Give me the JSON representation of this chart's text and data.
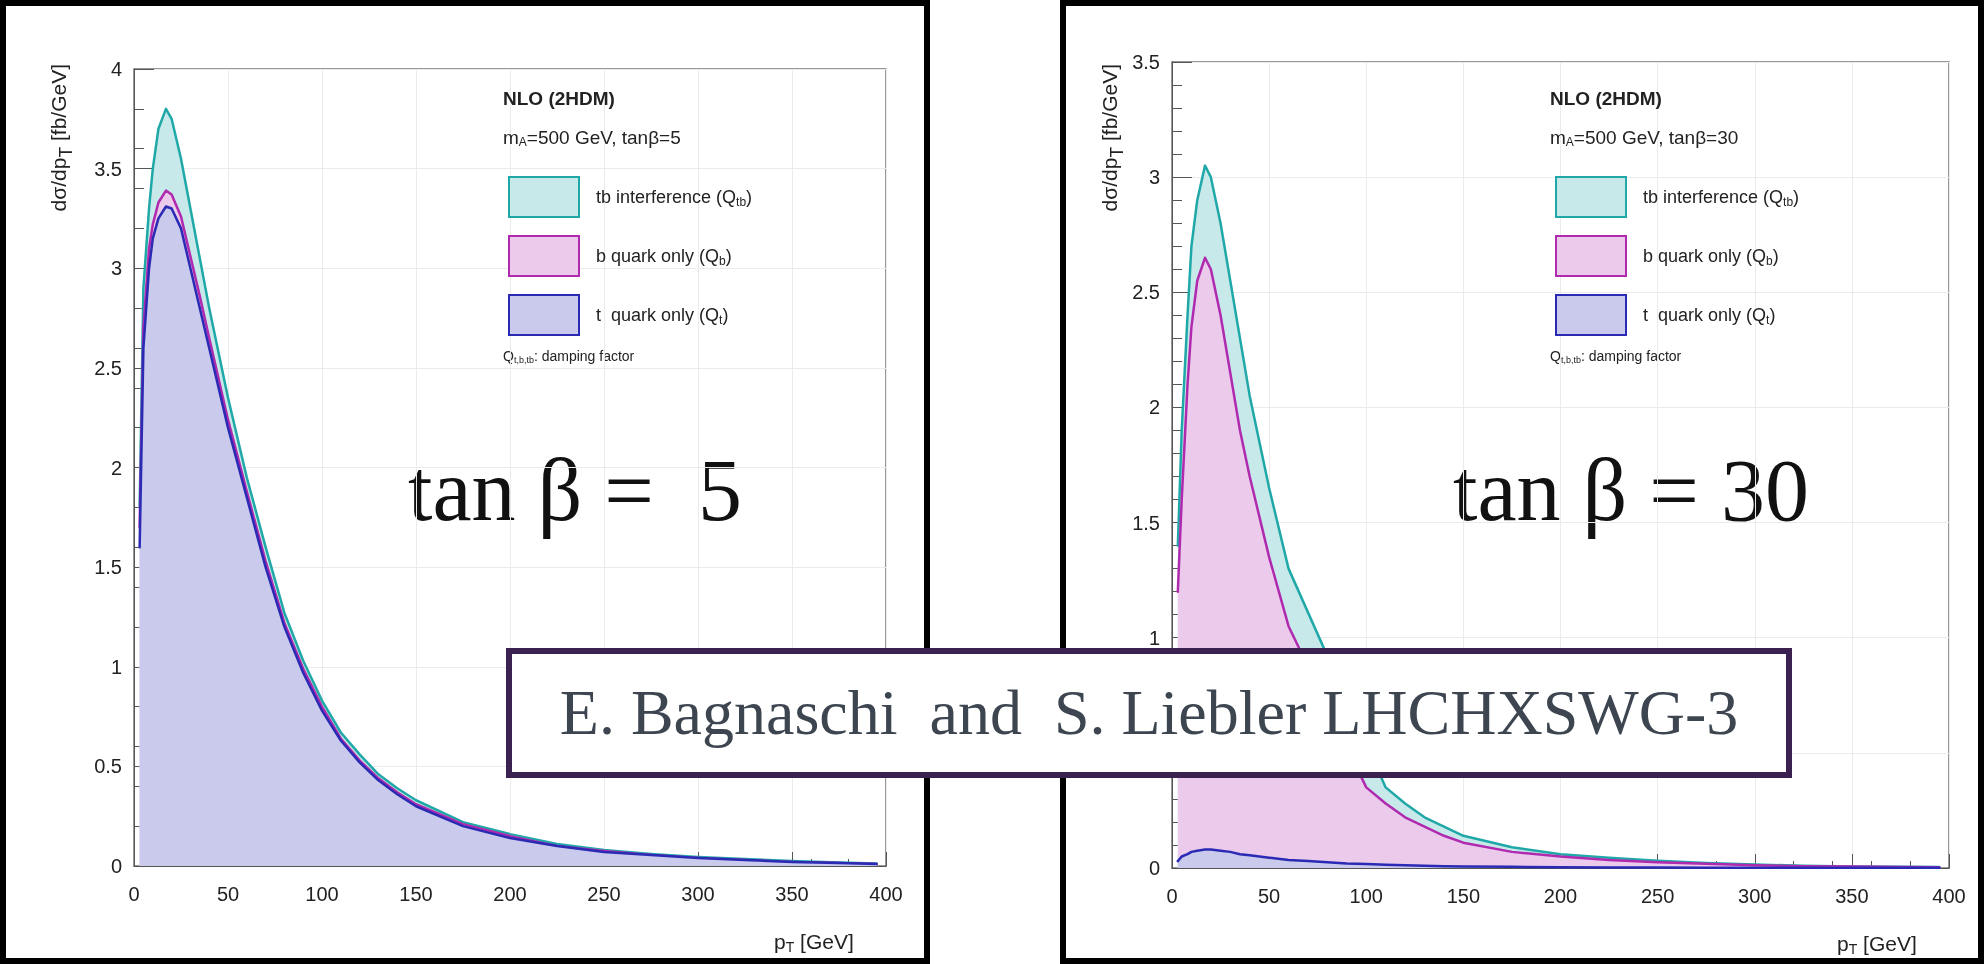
{
  "chart_data": [
    {
      "type": "area",
      "title": "NLO (2HDM)",
      "subtitle": "m$_{A}$=500 GeV, tanβ=5",
      "xlabel": "p$_{T}$ [GeV]",
      "ylabel": "dσ/dp$_{T}$ [fb/GeV]",
      "annotations": [
        "Q$_{t,b,tb}$: damping factor",
        "tan β =  5",
        "E. Bagnaschi  and  S. Liebler LHCHXSWG-3"
      ],
      "x": [
        3,
        5,
        8,
        10,
        13,
        17,
        20,
        25,
        30,
        35,
        40,
        50,
        60,
        70,
        80,
        90,
        100,
        110,
        120,
        130,
        140,
        150,
        175,
        200,
        225,
        250,
        275,
        300,
        325,
        350,
        375,
        395
      ],
      "series": [
        {
          "name": "tb interference (Q$_{tb}$)",
          "color": "#20a8a8",
          "values": [
            1.8,
            2.9,
            3.3,
            3.5,
            3.7,
            3.8,
            3.75,
            3.55,
            3.3,
            3.05,
            2.8,
            2.35,
            1.95,
            1.6,
            1.27,
            1.03,
            0.83,
            0.67,
            0.56,
            0.46,
            0.39,
            0.33,
            0.22,
            0.16,
            0.11,
            0.08,
            0.06,
            0.045,
            0.035,
            0.025,
            0.018,
            0.012
          ]
        },
        {
          "name": "b quark only (Q$_{b}$)",
          "color": "#b02ab0",
          "values": [
            1.7,
            2.7,
            3.1,
            3.22,
            3.33,
            3.39,
            3.37,
            3.26,
            3.06,
            2.86,
            2.65,
            2.24,
            1.88,
            1.53,
            1.22,
            0.99,
            0.8,
            0.64,
            0.53,
            0.44,
            0.37,
            0.31,
            0.21,
            0.15,
            0.1,
            0.075,
            0.055,
            0.04,
            0.03,
            0.02,
            0.015,
            0.01
          ]
        },
        {
          "name": "t  quark only (Q$_{t}$)",
          "color": "#2a2ab4",
          "values": [
            1.6,
            2.6,
            3.0,
            3.15,
            3.25,
            3.31,
            3.3,
            3.2,
            3.0,
            2.8,
            2.6,
            2.2,
            1.85,
            1.5,
            1.2,
            0.97,
            0.78,
            0.63,
            0.52,
            0.43,
            0.36,
            0.3,
            0.2,
            0.14,
            0.1,
            0.07,
            0.055,
            0.04,
            0.03,
            0.02,
            0.015,
            0.01
          ]
        }
      ],
      "xlim": [
        0,
        400
      ],
      "xticks": [
        0,
        50,
        100,
        150,
        200,
        250,
        300,
        350,
        400
      ],
      "ylim": [
        0,
        4
      ],
      "yticks": [
        0,
        0.5,
        1,
        1.5,
        2,
        2.5,
        3,
        3.5,
        4
      ],
      "grid": true,
      "legend": "top right",
      "marker": "none",
      "line_style": "solid"
    },
    {
      "type": "area",
      "title": "NLO (2HDM)",
      "subtitle": "m$_{A}$=500 GeV, tanβ=30",
      "xlabel": "p$_{T}$ [GeV]",
      "ylabel": "dσ/dp$_{T}$ [fb/GeV]",
      "annotations": [
        "Q$_{t,b,tb}$: damping factor",
        "tan β = 30"
      ],
      "x": [
        3,
        5,
        8,
        10,
        13,
        17,
        20,
        25,
        30,
        35,
        40,
        50,
        60,
        70,
        80,
        90,
        100,
        110,
        120,
        130,
        140,
        150,
        175,
        200,
        225,
        250,
        275,
        300,
        325,
        350,
        375,
        395
      ],
      "series": [
        {
          "name": "tb interference (Q$_{tb}$)",
          "color": "#20a8a8",
          "values": [
            1.4,
            1.9,
            2.4,
            2.7,
            2.9,
            3.05,
            3.0,
            2.8,
            2.55,
            2.3,
            2.05,
            1.65,
            1.3,
            null,
            null,
            null,
            null,
            0.35,
            0.28,
            0.22,
            0.18,
            0.14,
            0.09,
            0.06,
            0.045,
            0.032,
            0.022,
            0.015,
            0.01,
            0.007,
            0.005,
            0.004
          ]
        },
        {
          "name": "b quark only (Q$_{b}$)",
          "color": "#b02ab0",
          "values": [
            1.2,
            1.6,
            2.1,
            2.35,
            2.55,
            2.65,
            2.6,
            2.4,
            2.15,
            1.9,
            1.7,
            1.35,
            1.05,
            null,
            null,
            null,
            0.35,
            0.28,
            0.22,
            0.18,
            0.14,
            0.11,
            0.07,
            0.05,
            0.035,
            0.025,
            0.018,
            0.012,
            0.008,
            0.006,
            0.004,
            0.003
          ]
        },
        {
          "name": "t  quark only (Q$_{t}$)",
          "color": "#2a2ab4",
          "values": [
            0.03,
            0.05,
            0.06,
            0.07,
            0.075,
            0.08,
            0.08,
            0.075,
            0.07,
            0.06,
            0.055,
            0.045,
            0.035,
            0.03,
            0.025,
            0.02,
            0.017,
            0.014,
            0.012,
            0.01,
            0.008,
            0.007,
            0.005,
            0.003,
            0.002,
            0.002,
            0.001,
            0.001,
            0.001,
            0.001,
            0.001,
            0.001
          ]
        }
      ],
      "xlim": [
        0,
        400
      ],
      "xticks": [
        0,
        50,
        100,
        150,
        200,
        250,
        300,
        350,
        400
      ],
      "ylim": [
        0,
        3.5
      ],
      "yticks": [
        0,
        {
          "value": 0.5,
          "label": null
        },
        1,
        1.5,
        2,
        2.5,
        3,
        3.5
      ],
      "grid": true,
      "legend": "top right",
      "marker": "none",
      "line_style": "solid"
    }
  ]
}
